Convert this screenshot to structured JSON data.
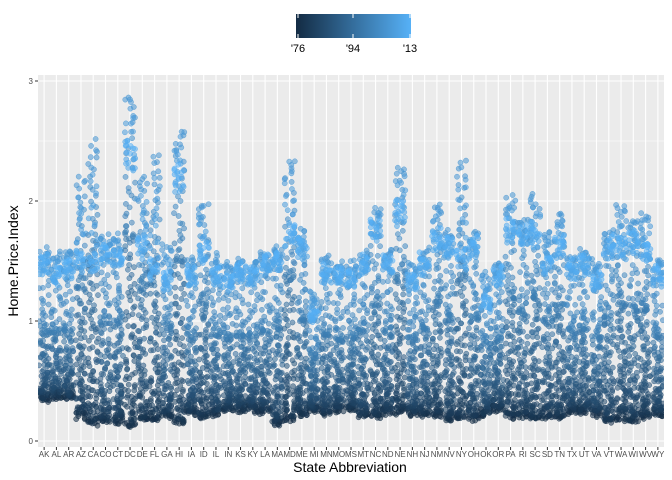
{
  "chart_data": {
    "type": "scatter",
    "title": "",
    "xlabel": "State Abbreviation",
    "ylabel": "Home.Price.Index",
    "ylim": [
      0,
      3
    ],
    "yticks": [
      0,
      1,
      2,
      3
    ],
    "grid": true,
    "legend_position": "top",
    "legend": {
      "type": "colorbar",
      "labels": [
        "'76",
        "'94",
        "'13"
      ],
      "low_color": "#132B43",
      "high_color": "#56B1F7"
    },
    "colors": {
      "panel": "#EBEBEB",
      "gridline": "#FFFFFF",
      "point_low": "#132B43",
      "point_high": "#56B1F7"
    },
    "categories": [
      "AK",
      "AL",
      "AR",
      "AZ",
      "CA",
      "CO",
      "CT",
      "DC",
      "DE",
      "FL",
      "GA",
      "HI",
      "IA",
      "ID",
      "IL",
      "IN",
      "KS",
      "KY",
      "LA",
      "MA",
      "MD",
      "ME",
      "MI",
      "MN",
      "MO",
      "MS",
      "MT",
      "NC",
      "ND",
      "NE",
      "NH",
      "NJ",
      "NM",
      "NV",
      "NY",
      "OH",
      "OK",
      "OR",
      "PA",
      "RI",
      "SC",
      "SD",
      "TN",
      "TX",
      "UT",
      "VA",
      "VT",
      "WA",
      "WI",
      "WV",
      "WY"
    ],
    "series_summary": {
      "description_fields": [
        "min",
        "peak",
        "final"
      ],
      "values": [
        [
          0.36,
          1.6,
          1.55
        ],
        [
          0.38,
          1.57,
          1.45
        ],
        [
          0.37,
          1.6,
          1.52
        ],
        [
          0.22,
          2.2,
          1.58
        ],
        [
          0.16,
          2.52,
          1.55
        ],
        [
          0.18,
          1.72,
          1.65
        ],
        [
          0.18,
          1.72,
          1.6
        ],
        [
          0.15,
          2.89,
          2.5
        ],
        [
          0.2,
          2.22,
          1.7
        ],
        [
          0.2,
          2.4,
          1.5
        ],
        [
          0.22,
          1.65,
          1.4
        ],
        [
          0.17,
          2.6,
          2.3
        ],
        [
          0.25,
          1.52,
          1.45
        ],
        [
          0.22,
          2.0,
          1.65
        ],
        [
          0.24,
          1.55,
          1.45
        ],
        [
          0.28,
          1.5,
          1.4
        ],
        [
          0.28,
          1.52,
          1.48
        ],
        [
          0.28,
          1.5,
          1.45
        ],
        [
          0.26,
          1.58,
          1.55
        ],
        [
          0.16,
          1.62,
          1.58
        ],
        [
          0.2,
          2.35,
          1.8
        ],
        [
          0.24,
          1.75,
          1.7
        ],
        [
          0.28,
          1.25,
          1.1
        ],
        [
          0.25,
          1.55,
          1.45
        ],
        [
          0.28,
          1.48,
          1.45
        ],
        [
          0.28,
          1.5,
          1.42
        ],
        [
          0.22,
          1.58,
          1.55
        ],
        [
          0.22,
          1.95,
          1.85
        ],
        [
          0.26,
          1.6,
          1.55
        ],
        [
          0.26,
          2.3,
          2.0
        ],
        [
          0.24,
          1.48,
          1.4
        ],
        [
          0.24,
          1.6,
          1.55
        ],
        [
          0.23,
          1.98,
          1.75
        ],
        [
          0.2,
          1.75,
          1.7
        ],
        [
          0.2,
          2.35,
          1.6
        ],
        [
          0.2,
          1.75,
          1.7
        ],
        [
          0.24,
          1.4,
          1.2
        ],
        [
          0.28,
          1.5,
          1.45
        ],
        [
          0.22,
          2.05,
          1.85
        ],
        [
          0.22,
          1.85,
          1.8
        ],
        [
          0.2,
          2.05,
          1.8
        ],
        [
          0.22,
          1.75,
          1.55
        ],
        [
          0.22,
          1.9,
          1.7
        ],
        [
          0.26,
          1.55,
          1.5
        ],
        [
          0.26,
          1.6,
          1.55
        ],
        [
          0.24,
          1.5,
          1.4
        ],
        [
          0.18,
          1.75,
          1.7
        ],
        [
          0.2,
          1.98,
          1.7
        ],
        [
          0.18,
          1.85,
          1.75
        ],
        [
          0.22,
          1.9,
          1.65
        ],
        [
          0.24,
          1.52,
          1.45
        ]
      ]
    }
  }
}
